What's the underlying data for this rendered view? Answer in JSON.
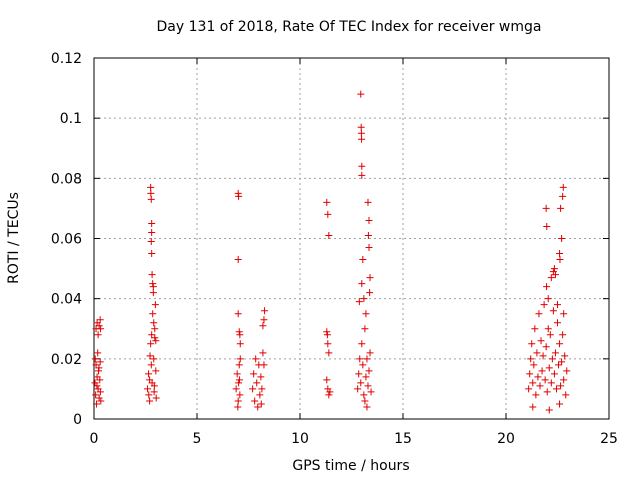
{
  "chart_data": {
    "type": "scatter",
    "title": "Day 131 of 2018, Rate Of TEC Index for receiver wmga",
    "xlabel": "GPS time / hours",
    "ylabel": "ROTI / TECUs",
    "xlim": [
      0,
      25
    ],
    "ylim": [
      0,
      0.12
    ],
    "x_ticks": [
      0,
      5,
      10,
      15,
      20,
      25
    ],
    "x_tick_labels": [
      "0",
      "5",
      "10",
      "15",
      "20",
      "25"
    ],
    "y_ticks": [
      0,
      0.02,
      0.04,
      0.06,
      0.08,
      0.1,
      0.12
    ],
    "y_tick_labels": [
      "0",
      "0.02",
      "0.04",
      "0.06",
      "0.08",
      "0.1",
      "0.12"
    ],
    "grid": true,
    "marker": "+",
    "marker_color": "#e00000",
    "series": [
      {
        "points": [
          [
            0.05,
            0.012
          ],
          [
            0.08,
            0.008
          ],
          [
            0.1,
            0.018
          ],
          [
            0.12,
            0.005
          ],
          [
            0.15,
            0.014
          ],
          [
            0.18,
            0.022
          ],
          [
            0.2,
            0.01
          ],
          [
            0.22,
            0.016
          ],
          [
            0.25,
            0.007
          ],
          [
            0.28,
            0.013
          ],
          [
            0.3,
            0.019
          ],
          [
            0.33,
            0.006
          ],
          [
            0.1,
            0.03
          ],
          [
            0.15,
            0.032
          ],
          [
            0.2,
            0.028
          ],
          [
            0.25,
            0.031
          ],
          [
            0.3,
            0.033
          ],
          [
            0.32,
            0.03
          ],
          [
            0.06,
            0.02
          ],
          [
            0.14,
            0.011
          ],
          [
            0.24,
            0.017
          ],
          [
            0.31,
            0.009
          ],
          [
            2.6,
            0.01
          ],
          [
            2.65,
            0.015
          ],
          [
            2.7,
            0.006
          ],
          [
            2.72,
            0.021
          ],
          [
            2.75,
            0.025
          ],
          [
            2.78,
            0.018
          ],
          [
            2.8,
            0.028
          ],
          [
            2.82,
            0.012
          ],
          [
            2.85,
            0.035
          ],
          [
            2.88,
            0.042
          ],
          [
            2.9,
            0.02
          ],
          [
            2.92,
            0.009
          ],
          [
            2.95,
            0.03
          ],
          [
            2.98,
            0.038
          ],
          [
            3.0,
            0.016
          ],
          [
            3.02,
            0.007
          ],
          [
            2.75,
            0.077
          ],
          [
            2.76,
            0.075
          ],
          [
            2.78,
            0.073
          ],
          [
            2.8,
            0.065
          ],
          [
            2.8,
            0.062
          ],
          [
            2.78,
            0.059
          ],
          [
            2.8,
            0.055
          ],
          [
            2.82,
            0.048
          ],
          [
            2.85,
            0.045
          ],
          [
            2.88,
            0.044
          ],
          [
            2.9,
            0.032
          ],
          [
            2.95,
            0.027
          ],
          [
            3.0,
            0.026
          ],
          [
            2.7,
            0.013
          ],
          [
            2.93,
            0.011
          ],
          [
            2.66,
            0.008
          ],
          [
            6.9,
            0.01
          ],
          [
            6.95,
            0.015
          ],
          [
            7.0,
            0.006
          ],
          [
            7.02,
            0.012
          ],
          [
            7.05,
            0.018
          ],
          [
            7.08,
            0.008
          ],
          [
            7.1,
            0.02
          ],
          [
            7.0,
            0.075
          ],
          [
            7.02,
            0.074
          ],
          [
            7.0,
            0.053
          ],
          [
            7.0,
            0.035
          ],
          [
            7.05,
            0.029
          ],
          [
            7.08,
            0.028
          ],
          [
            7.1,
            0.025
          ],
          [
            6.98,
            0.004
          ],
          [
            7.06,
            0.013
          ],
          [
            7.7,
            0.01
          ],
          [
            7.75,
            0.015
          ],
          [
            7.8,
            0.006
          ],
          [
            7.85,
            0.02
          ],
          [
            7.9,
            0.012
          ],
          [
            8.0,
            0.018
          ],
          [
            8.05,
            0.008
          ],
          [
            8.1,
            0.014
          ],
          [
            8.15,
            0.01
          ],
          [
            8.2,
            0.031
          ],
          [
            8.25,
            0.033
          ],
          [
            8.28,
            0.036
          ],
          [
            8.2,
            0.022
          ],
          [
            8.25,
            0.018
          ],
          [
            7.95,
            0.004
          ],
          [
            8.12,
            0.005
          ],
          [
            11.3,
            0.072
          ],
          [
            11.35,
            0.068
          ],
          [
            11.4,
            0.061
          ],
          [
            11.3,
            0.029
          ],
          [
            11.35,
            0.025
          ],
          [
            11.4,
            0.022
          ],
          [
            11.3,
            0.013
          ],
          [
            11.35,
            0.01
          ],
          [
            11.4,
            0.008
          ],
          [
            11.45,
            0.009
          ],
          [
            11.33,
            0.028
          ],
          [
            12.8,
            0.01
          ],
          [
            12.85,
            0.015
          ],
          [
            12.9,
            0.02
          ],
          [
            12.95,
            0.012
          ],
          [
            13.0,
            0.025
          ],
          [
            13.05,
            0.018
          ],
          [
            13.1,
            0.008
          ],
          [
            13.15,
            0.03
          ],
          [
            13.2,
            0.014
          ],
          [
            13.25,
            0.02
          ],
          [
            13.3,
            0.011
          ],
          [
            13.35,
            0.016
          ],
          [
            13.4,
            0.022
          ],
          [
            13.45,
            0.009
          ],
          [
            12.95,
            0.108
          ],
          [
            12.97,
            0.097
          ],
          [
            12.98,
            0.095
          ],
          [
            12.99,
            0.093
          ],
          [
            13.0,
            0.084
          ],
          [
            13.0,
            0.081
          ],
          [
            13.05,
            0.053
          ],
          [
            13.0,
            0.045
          ],
          [
            13.1,
            0.04
          ],
          [
            13.2,
            0.035
          ],
          [
            13.3,
            0.072
          ],
          [
            13.35,
            0.066
          ],
          [
            13.32,
            0.061
          ],
          [
            13.35,
            0.057
          ],
          [
            13.4,
            0.047
          ],
          [
            13.38,
            0.042
          ],
          [
            12.88,
            0.039
          ],
          [
            13.15,
            0.006
          ],
          [
            13.25,
            0.004
          ],
          [
            21.1,
            0.01
          ],
          [
            21.15,
            0.015
          ],
          [
            21.2,
            0.02
          ],
          [
            21.25,
            0.025
          ],
          [
            21.3,
            0.012
          ],
          [
            21.35,
            0.018
          ],
          [
            21.4,
            0.03
          ],
          [
            21.45,
            0.008
          ],
          [
            21.5,
            0.022
          ],
          [
            21.55,
            0.014
          ],
          [
            21.6,
            0.035
          ],
          [
            21.65,
            0.011
          ],
          [
            21.7,
            0.026
          ],
          [
            21.75,
            0.016
          ],
          [
            21.8,
            0.021
          ],
          [
            21.85,
            0.038
          ],
          [
            21.9,
            0.013
          ],
          [
            21.95,
            0.024
          ],
          [
            22.0,
            0.009
          ],
          [
            22.05,
            0.03
          ],
          [
            22.1,
            0.017
          ],
          [
            22.15,
            0.028
          ],
          [
            22.2,
            0.012
          ],
          [
            22.25,
            0.02
          ],
          [
            22.3,
            0.036
          ],
          [
            22.35,
            0.015
          ],
          [
            22.4,
            0.022
          ],
          [
            22.45,
            0.01
          ],
          [
            22.5,
            0.032
          ],
          [
            22.55,
            0.018
          ],
          [
            22.6,
            0.025
          ],
          [
            22.65,
            0.011
          ],
          [
            22.7,
            0.019
          ],
          [
            22.75,
            0.028
          ],
          [
            22.8,
            0.013
          ],
          [
            22.85,
            0.021
          ],
          [
            22.9,
            0.008
          ],
          [
            22.95,
            0.016
          ],
          [
            21.95,
            0.07
          ],
          [
            21.98,
            0.064
          ],
          [
            21.97,
            0.044
          ],
          [
            22.05,
            0.04
          ],
          [
            22.3,
            0.049
          ],
          [
            22.35,
            0.05
          ],
          [
            22.4,
            0.048
          ],
          [
            22.2,
            0.047
          ],
          [
            22.6,
            0.055
          ],
          [
            22.62,
            0.053
          ],
          [
            22.7,
            0.06
          ],
          [
            22.75,
            0.074
          ],
          [
            22.78,
            0.077
          ],
          [
            22.65,
            0.07
          ],
          [
            22.5,
            0.038
          ],
          [
            22.8,
            0.035
          ],
          [
            21.3,
            0.004
          ],
          [
            22.1,
            0.003
          ],
          [
            22.6,
            0.005
          ]
        ]
      }
    ]
  }
}
